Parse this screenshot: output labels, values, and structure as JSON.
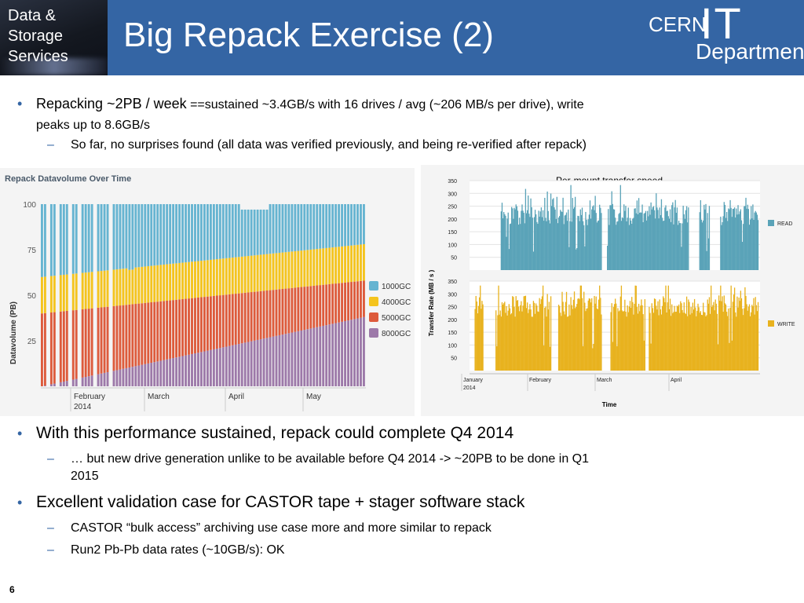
{
  "header": {
    "badge_lines": [
      "Data &",
      "Storage",
      "Services"
    ],
    "title": "Big Repack Exercise (2)",
    "logo": {
      "cern": "CERN",
      "it": "IT",
      "department": "Department"
    }
  },
  "bullets": {
    "b1_lead": "Repacking ~2PB / week",
    "b1_rest_line1": " ==sustained ~3.4GB/s with 16 drives / avg (~206 MB/s per drive), write",
    "b1_rest_line2": "peaks up to 8.6GB/s",
    "b1_sub1": "So far, no surprises found (all data was verified previously, and being re-verified after repack)",
    "b2": "With this performance sustained, repack could complete Q4 2014",
    "b2_sub1_line1": "… but new drive generation unlike to be available before Q4 2014 -> ~20PB to be done in Q1",
    "b2_sub1_line2": "2015",
    "b3": "Excellent validation case for CASTOR tape + stager software stack",
    "b3_sub1": "CASTOR “bulk access” archiving use case more and more similar to repack",
    "b3_sub2": "Run2 Pb-Pb data rates (~10GB/s): OK",
    "bullet_glyph": "•",
    "dash_glyph": "–"
  },
  "page_number": "6",
  "colors": {
    "header_bg": "#3465a4",
    "c1000": "#66b4d1",
    "c4000": "#f4c41e",
    "c5000": "#dd5b3c",
    "c8000": "#9d79a9",
    "read": "#5aa3b8",
    "write": "#e8b21e"
  },
  "chart_data": [
    {
      "type": "bar",
      "title": "Repack Datavolume Over Time",
      "ylabel": "Datavolume (PB)",
      "ylim": [
        0,
        100
      ],
      "yticks": [
        "100",
        "75",
        "50",
        "25"
      ],
      "xticks": [
        {
          "label": "February",
          "label2": "2014"
        },
        {
          "label": "March"
        },
        {
          "label": "April"
        },
        {
          "label": "May"
        }
      ],
      "stacked": true,
      "percent": true,
      "legend": [
        "1000GC",
        "4000GC",
        "5000GC",
        "8000GC"
      ],
      "legend_position": "right",
      "series": [
        {
          "name": "8000GC",
          "start": 0,
          "end": 38
        },
        {
          "name": "5000GC",
          "start": 40,
          "end": 20
        },
        {
          "name": "4000GC",
          "start": 20,
          "end": 20
        },
        {
          "name": "1000GC",
          "start": 40,
          "end": 22
        }
      ]
    },
    {
      "type": "area",
      "title": "Per-mount transfer speed",
      "ylabel": "Transfer Rate (MB / s )",
      "xlabel": "Time",
      "xticks": [
        {
          "label": "January",
          "label2": "2014"
        },
        {
          "label": "February"
        },
        {
          "label": "March"
        },
        {
          "label": "April"
        }
      ],
      "panels": [
        {
          "name": "READ",
          "ylim": [
            0,
            350
          ],
          "yticks": [
            "350",
            "300",
            "250",
            "200",
            "150",
            "100",
            "50"
          ]
        },
        {
          "name": "WRITE",
          "ylim": [
            0,
            350
          ],
          "yticks": [
            "350",
            "300",
            "250",
            "200",
            "150",
            "100",
            "50"
          ]
        }
      ]
    }
  ]
}
